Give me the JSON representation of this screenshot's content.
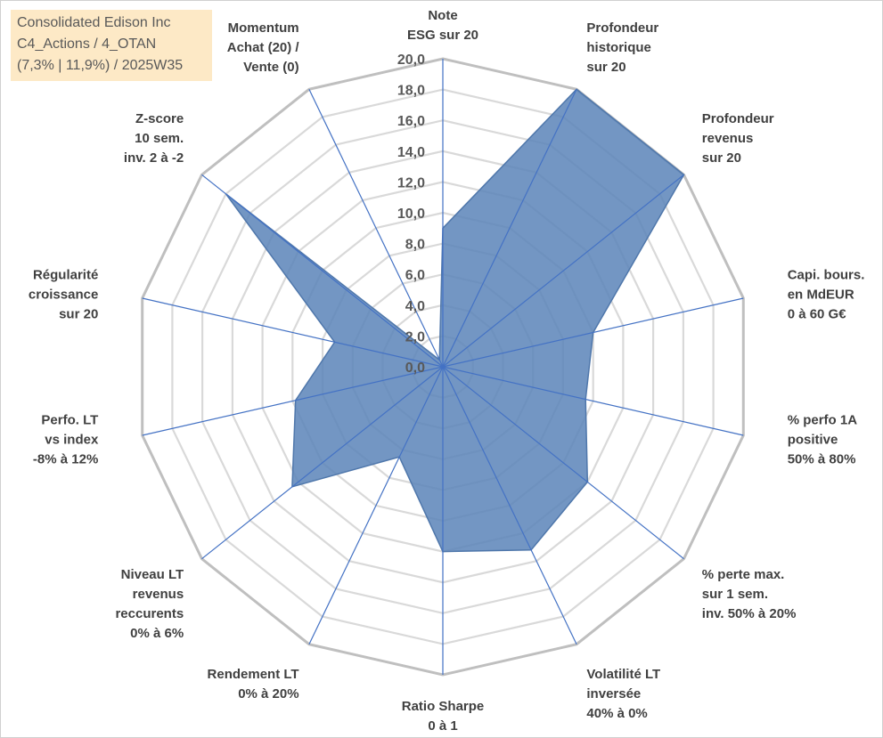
{
  "title_box": {
    "lines": [
      "Consolidated Edison Inc",
      "C4_Actions / 4_OTAN",
      "(7,3% | 11,9%) / 2025W35"
    ]
  },
  "colors": {
    "fill": "#5b84b8",
    "stroke": "#4f77ab",
    "spokes": "#4472c4",
    "grid_outer": "#bfbfbf",
    "grid_inner": "#d9d9d9",
    "title_bg": "#fde9c6"
  },
  "chart_data": {
    "type": "radar",
    "axis_range": [
      0,
      20
    ],
    "tick_step": 2,
    "tick_labels": [
      "0,0",
      "2,0",
      "4,0",
      "6,0",
      "8,0",
      "10,0",
      "12,0",
      "14,0",
      "16,0",
      "18,0",
      "20,0"
    ],
    "grid": true,
    "categories": [
      [
        "Note",
        "ESG sur 20"
      ],
      [
        "Profondeur",
        "historique",
        "sur 20"
      ],
      [
        "Profondeur",
        "revenus",
        "sur 20"
      ],
      [
        "Capi. bours.",
        "en MdEUR",
        "0 à 60 G€"
      ],
      [
        "% perfo 1A",
        "positive",
        "50% à 80%"
      ],
      [
        "% perte max.",
        "sur 1 sem.",
        "inv. 50% à 20%"
      ],
      [
        "Volatilité LT",
        "inversée",
        "40% à 0%"
      ],
      [
        "Ratio Sharpe",
        "0 à 1"
      ],
      [
        "Rendement LT",
        "0% à 20%"
      ],
      [
        "Niveau LT",
        "revenus",
        "reccurents",
        "0% à 6%"
      ],
      [
        "Perfo. LT",
        "vs index",
        "-8% à 12%"
      ],
      [
        "Régularité",
        "croissance",
        "sur 20"
      ],
      [
        "Z-score",
        "10 sem.",
        "inv. 2 à -2"
      ],
      [
        "Momentum",
        "Achat (20) /",
        "Vente (0)"
      ]
    ],
    "series": [
      {
        "values": [
          9.0,
          20.0,
          20.0,
          10.0,
          9.5,
          12.0,
          13.2,
          12.0,
          6.5,
          12.5,
          9.8,
          7.2,
          18.0,
          0.5
        ]
      }
    ]
  }
}
